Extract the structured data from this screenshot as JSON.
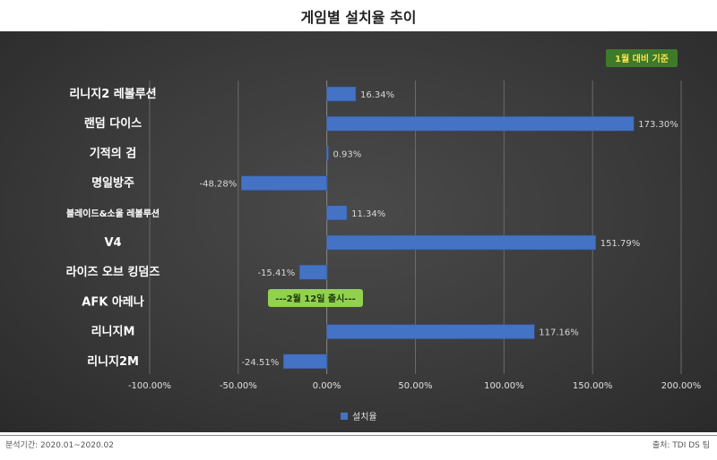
{
  "chart_data": {
    "type": "bar",
    "orientation": "horizontal",
    "title": "게임별 설치율 추이",
    "categories": [
      "리니지2 레볼루션",
      "랜덤 다이스",
      "기적의 검",
      "명일방주",
      "블레이드&소울 레볼루션",
      "V4",
      "라이즈 오브 킹덤즈",
      "AFK 아레나",
      "리니지M",
      "리니지2M"
    ],
    "series": [
      {
        "name": "설치율",
        "values": [
          16.34,
          173.3,
          0.93,
          -48.28,
          11.34,
          151.79,
          -15.41,
          null,
          117.16,
          -24.51
        ],
        "value_labels": [
          "16.34%",
          "173.30%",
          "0.93%",
          "-48.28%",
          "11.34%",
          "151.79%",
          "-15.41%",
          "",
          "117.16%",
          "-24.51%"
        ]
      }
    ],
    "xlim": [
      -100,
      200
    ],
    "xticks": [
      -100,
      -50,
      0,
      50,
      100,
      150,
      200
    ],
    "xtick_labels": [
      "-100.00%",
      "-50.00%",
      "0.00%",
      "50.00%",
      "100.00%",
      "150.00%",
      "200.00%"
    ],
    "grid": true,
    "legend": "bottom-center",
    "annotations": [
      {
        "text": "1월 대비 기준",
        "position": "top-right"
      },
      {
        "text": "---2월 12일 출시---",
        "category": "AFK 아레나"
      }
    ]
  },
  "colors": {
    "bar": "#4472c4",
    "bar_edge": "#2f5597",
    "grid": "#6a6a6a",
    "zero_line": "#8a8a8a",
    "note_badge_bg": "#3d7a2a",
    "note_badge_text": "#ffe24a",
    "release_badge_bg": "#92d050",
    "release_badge_text": "#1a3a0a"
  },
  "footer": {
    "left": "분석기간: 2020.01~2020.02",
    "right": "출처: TDI DS 팀"
  }
}
